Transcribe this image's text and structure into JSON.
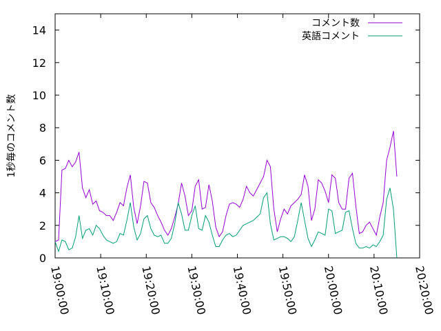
{
  "chart_data": {
    "type": "line",
    "ylabel": "1秒毎のコメント数",
    "xlabel": "",
    "ylim": [
      0,
      15
    ],
    "y_ticks": [
      0,
      2,
      4,
      6,
      8,
      10,
      12,
      14
    ],
    "x_range": [
      "19:00:00",
      "20:20:00"
    ],
    "x_ticks": [
      "19:00:00",
      "19:10:00",
      "19:20:00",
      "19:30:00",
      "19:40:00",
      "19:50:00",
      "20:00:00",
      "20:10:00",
      "20:20:00"
    ],
    "legend_position": "top-right",
    "grid": false,
    "x": [
      "19:00:00",
      "19:00:45",
      "19:01:30",
      "19:02:15",
      "19:03:00",
      "19:03:45",
      "19:04:30",
      "19:05:15",
      "19:06:00",
      "19:06:45",
      "19:07:30",
      "19:08:15",
      "19:09:00",
      "19:09:45",
      "19:10:30",
      "19:11:15",
      "19:12:00",
      "19:12:45",
      "19:13:30",
      "19:14:15",
      "19:15:00",
      "19:15:45",
      "19:16:30",
      "19:17:15",
      "19:18:00",
      "19:18:45",
      "19:19:30",
      "19:20:15",
      "19:21:00",
      "19:21:45",
      "19:22:30",
      "19:23:15",
      "19:24:00",
      "19:24:45",
      "19:25:30",
      "19:26:15",
      "19:27:00",
      "19:27:45",
      "19:28:30",
      "19:29:15",
      "19:30:00",
      "19:30:45",
      "19:31:30",
      "19:32:15",
      "19:33:00",
      "19:33:45",
      "19:34:30",
      "19:35:15",
      "19:36:00",
      "19:36:45",
      "19:37:30",
      "19:38:15",
      "19:39:00",
      "19:39:45",
      "19:40:30",
      "19:41:15",
      "19:42:00",
      "19:42:45",
      "19:43:30",
      "19:44:15",
      "19:45:00",
      "19:45:45",
      "19:46:30",
      "19:47:15",
      "19:48:00",
      "19:48:45",
      "19:49:30",
      "19:50:15",
      "19:51:00",
      "19:51:45",
      "19:52:30",
      "19:53:15",
      "19:54:00",
      "19:54:45",
      "19:55:30",
      "19:56:15",
      "19:57:00",
      "19:57:45",
      "19:58:30",
      "19:59:15",
      "20:00:00",
      "20:00:45",
      "20:01:30",
      "20:02:15",
      "20:03:00",
      "20:03:45",
      "20:04:30",
      "20:05:15",
      "20:06:00",
      "20:06:45",
      "20:07:30",
      "20:08:15",
      "20:09:00",
      "20:09:45",
      "20:10:30",
      "20:11:15",
      "20:12:00",
      "20:12:45",
      "20:13:30",
      "20:14:15",
      "20:15:00"
    ],
    "series": [
      {
        "name": "コメント数",
        "color": "#9400d3",
        "values": [
          1.0,
          1.1,
          5.4,
          5.5,
          6.0,
          5.6,
          5.9,
          6.5,
          4.3,
          3.7,
          4.2,
          3.3,
          3.5,
          2.9,
          2.8,
          2.6,
          2.6,
          2.3,
          2.8,
          3.4,
          3.2,
          4.3,
          5.1,
          3.1,
          2.1,
          3.2,
          4.7,
          4.6,
          3.4,
          3.1,
          2.6,
          2.2,
          1.7,
          1.4,
          1.8,
          2.5,
          3.3,
          4.6,
          3.8,
          2.6,
          2.9,
          4.4,
          4.8,
          3.0,
          3.1,
          4.5,
          3.5,
          1.9,
          1.3,
          1.6,
          2.6,
          3.3,
          3.4,
          3.3,
          3.1,
          3.6,
          4.4,
          4.0,
          3.8,
          4.2,
          4.6,
          5.0,
          6.0,
          5.6,
          3.0,
          1.6,
          2.4,
          3.0,
          2.7,
          3.2,
          3.4,
          3.6,
          3.9,
          5.1,
          4.4,
          2.3,
          3.0,
          4.8,
          4.6,
          4.1,
          3.4,
          5.1,
          4.9,
          3.4,
          3.0,
          3.0,
          4.9,
          5.2,
          3.2,
          1.5,
          1.6,
          2.0,
          2.2,
          1.8,
          1.4,
          2.5,
          3.4,
          6.0,
          6.8,
          7.8,
          5.0
        ]
      },
      {
        "name": "英語コメント",
        "color": "#009e73",
        "values": [
          1.0,
          0.4,
          1.1,
          1.0,
          0.5,
          0.6,
          1.3,
          2.6,
          1.2,
          1.7,
          1.8,
          1.4,
          2.0,
          1.8,
          1.4,
          1.1,
          1.0,
          0.9,
          1.0,
          1.5,
          1.4,
          2.3,
          3.4,
          1.9,
          1.1,
          1.5,
          2.4,
          2.6,
          1.8,
          1.4,
          1.3,
          1.4,
          0.9,
          0.9,
          1.2,
          2.1,
          3.4,
          2.7,
          1.7,
          1.7,
          2.6,
          3.2,
          1.8,
          1.7,
          2.6,
          2.2,
          1.4,
          0.7,
          0.7,
          1.1,
          1.4,
          1.5,
          1.3,
          1.4,
          1.7,
          2.0,
          2.1,
          2.2,
          2.3,
          2.5,
          2.7,
          3.7,
          4.0,
          2.1,
          1.1,
          1.2,
          1.3,
          1.3,
          1.2,
          1.0,
          1.3,
          2.3,
          3.4,
          2.3,
          1.2,
          0.7,
          1.1,
          1.6,
          1.5,
          1.4,
          3.0,
          2.9,
          1.5,
          1.6,
          1.7,
          2.8,
          2.9,
          1.8,
          0.9,
          0.6,
          0.6,
          0.7,
          0.6,
          0.8,
          0.7,
          1.0,
          1.4,
          3.6,
          4.3,
          3.0,
          0.0
        ]
      }
    ]
  }
}
